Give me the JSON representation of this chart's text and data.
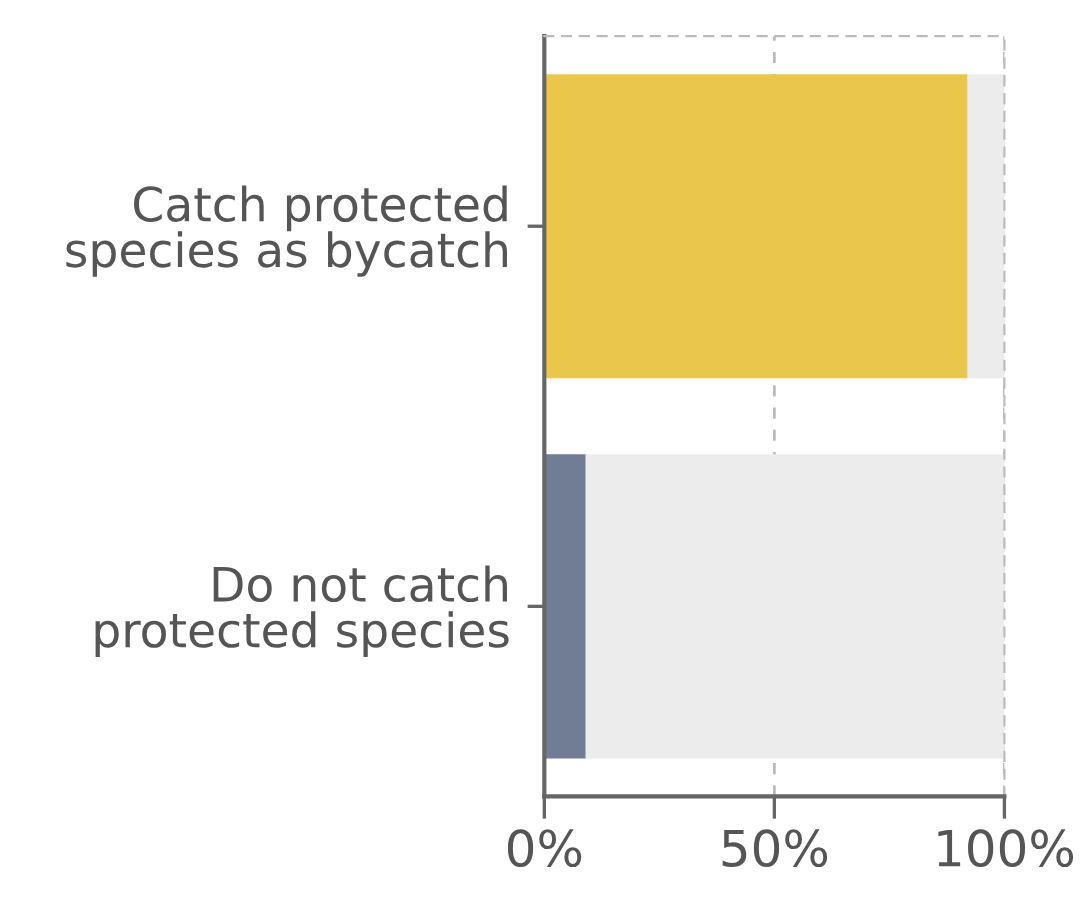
{
  "chart_data": {
    "type": "bar",
    "orientation": "horizontal",
    "stacked": true,
    "categories": [
      "Catch protected\nspecies as bycatch",
      "Do not catch\nprotected species"
    ],
    "series": [
      {
        "colors": [
          "#eac64a",
          "#707d94"
        ],
        "values": [
          92,
          9
        ]
      },
      {
        "color": "#ececec",
        "values": [
          8,
          91
        ]
      }
    ],
    "xlim": [
      0,
      100
    ],
    "xticks": [
      {
        "value": 0,
        "label": "0%"
      },
      {
        "value": 50,
        "label": "50%"
      },
      {
        "value": 100,
        "label": "100%"
      }
    ],
    "grid": "x"
  }
}
